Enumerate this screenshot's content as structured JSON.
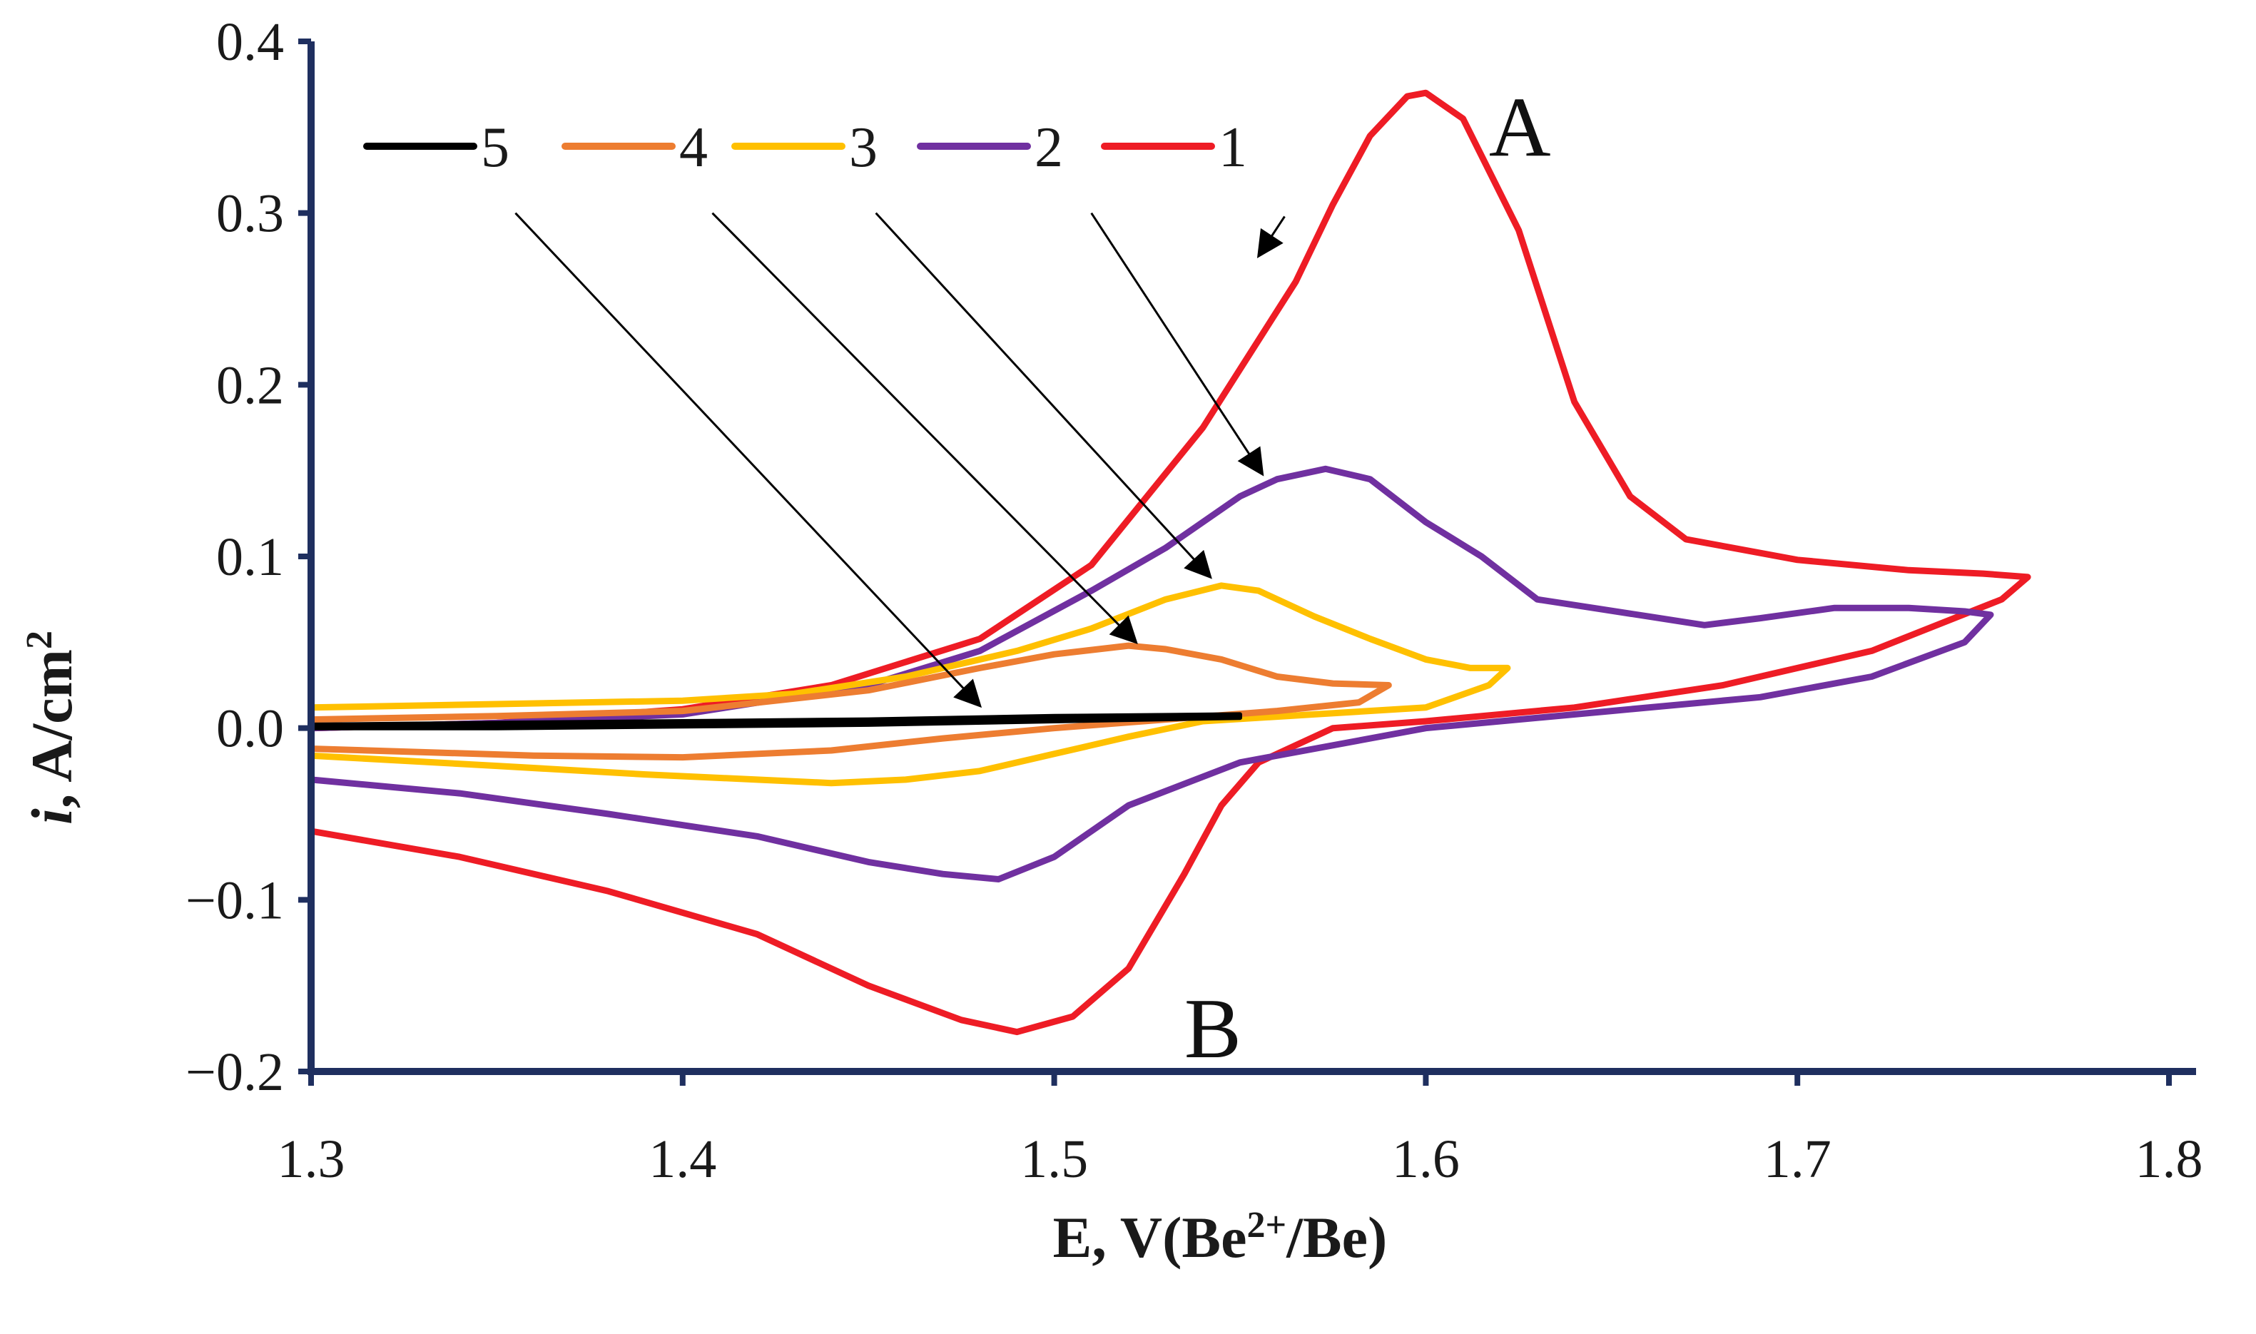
{
  "chart_data": {
    "type": "line",
    "title": "",
    "xlabel": "E, V(Be2+/Be)",
    "xlabel_parts": {
      "main": "E, V(Be",
      "superscript": "2+",
      "tail": "/Be)"
    },
    "ylabel": "i, A/cm2",
    "ylabel_parts": {
      "italic": "i",
      "main": ", A/cm",
      "superscript": "2"
    },
    "xlim": [
      1.3,
      1.8
    ],
    "ylim": [
      -0.2,
      0.4
    ],
    "x_ticks": [
      1.3,
      1.4,
      1.5,
      1.6,
      1.7,
      1.8
    ],
    "x_tick_labels": [
      "1.3",
      "1.4",
      "1.5",
      "1.6",
      "1.7",
      "1.8"
    ],
    "y_ticks": [
      0.4,
      0.3,
      0.2,
      0.1,
      0.0,
      -0.1,
      -0.2
    ],
    "y_tick_labels": [
      "0.4",
      "0.3",
      "0.2",
      "0.1",
      "0.0",
      "−0.1",
      "−0.2"
    ],
    "legend_position": "top-left",
    "legend_order": [
      "5",
      "4",
      "3",
      "2",
      "1"
    ],
    "annotations": [
      {
        "text": "A",
        "x": 1.617,
        "y": 0.35
      },
      {
        "text": "B",
        "x": 1.535,
        "y": -0.175
      }
    ],
    "series": [
      {
        "name": "1",
        "color": "#ee1c25",
        "points": [
          [
            1.3,
            0.0
          ],
          [
            1.35,
            0.003
          ],
          [
            1.4,
            0.011
          ],
          [
            1.44,
            0.025
          ],
          [
            1.48,
            0.052
          ],
          [
            1.51,
            0.095
          ],
          [
            1.54,
            0.175
          ],
          [
            1.565,
            0.26
          ],
          [
            1.575,
            0.305
          ],
          [
            1.585,
            0.345
          ],
          [
            1.595,
            0.368
          ],
          [
            1.6,
            0.37
          ],
          [
            1.61,
            0.355
          ],
          [
            1.625,
            0.29
          ],
          [
            1.64,
            0.19
          ],
          [
            1.655,
            0.135
          ],
          [
            1.67,
            0.11
          ],
          [
            1.7,
            0.098
          ],
          [
            1.73,
            0.092
          ],
          [
            1.75,
            0.09
          ],
          [
            1.762,
            0.088
          ],
          [
            1.755,
            0.075
          ],
          [
            1.72,
            0.045
          ],
          [
            1.68,
            0.025
          ],
          [
            1.64,
            0.012
          ],
          [
            1.6,
            0.004
          ],
          [
            1.575,
            0.0
          ],
          [
            1.555,
            -0.02
          ],
          [
            1.545,
            -0.045
          ],
          [
            1.535,
            -0.085
          ],
          [
            1.52,
            -0.14
          ],
          [
            1.505,
            -0.168
          ],
          [
            1.49,
            -0.177
          ],
          [
            1.475,
            -0.17
          ],
          [
            1.45,
            -0.15
          ],
          [
            1.42,
            -0.12
          ],
          [
            1.38,
            -0.095
          ],
          [
            1.34,
            -0.075
          ],
          [
            1.3,
            -0.06
          ]
        ]
      },
      {
        "name": "2",
        "color": "#7030a0",
        "points": [
          [
            1.3,
            0.0
          ],
          [
            1.35,
            0.003
          ],
          [
            1.4,
            0.008
          ],
          [
            1.45,
            0.025
          ],
          [
            1.48,
            0.045
          ],
          [
            1.51,
            0.08
          ],
          [
            1.53,
            0.105
          ],
          [
            1.55,
            0.135
          ],
          [
            1.56,
            0.145
          ],
          [
            1.573,
            0.151
          ],
          [
            1.585,
            0.145
          ],
          [
            1.6,
            0.12
          ],
          [
            1.615,
            0.1
          ],
          [
            1.63,
            0.075
          ],
          [
            1.645,
            0.07
          ],
          [
            1.66,
            0.065
          ],
          [
            1.675,
            0.06
          ],
          [
            1.69,
            0.064
          ],
          [
            1.71,
            0.07
          ],
          [
            1.73,
            0.07
          ],
          [
            1.745,
            0.068
          ],
          [
            1.752,
            0.066
          ],
          [
            1.745,
            0.05
          ],
          [
            1.72,
            0.03
          ],
          [
            1.69,
            0.018
          ],
          [
            1.65,
            0.01
          ],
          [
            1.6,
            0.0
          ],
          [
            1.55,
            -0.02
          ],
          [
            1.52,
            -0.045
          ],
          [
            1.5,
            -0.075
          ],
          [
            1.485,
            -0.088
          ],
          [
            1.47,
            -0.085
          ],
          [
            1.45,
            -0.078
          ],
          [
            1.42,
            -0.063
          ],
          [
            1.38,
            -0.05
          ],
          [
            1.34,
            -0.038
          ],
          [
            1.3,
            -0.03
          ]
        ]
      },
      {
        "name": "3",
        "color": "#ffc000",
        "points": [
          [
            1.3,
            0.012
          ],
          [
            1.35,
            0.014
          ],
          [
            1.4,
            0.016
          ],
          [
            1.43,
            0.02
          ],
          [
            1.46,
            0.03
          ],
          [
            1.49,
            0.045
          ],
          [
            1.51,
            0.058
          ],
          [
            1.53,
            0.075
          ],
          [
            1.545,
            0.083
          ],
          [
            1.555,
            0.08
          ],
          [
            1.57,
            0.065
          ],
          [
            1.585,
            0.052
          ],
          [
            1.6,
            0.04
          ],
          [
            1.612,
            0.035
          ],
          [
            1.622,
            0.035
          ],
          [
            1.617,
            0.025
          ],
          [
            1.6,
            0.012
          ],
          [
            1.57,
            0.008
          ],
          [
            1.54,
            0.004
          ],
          [
            1.52,
            -0.005
          ],
          [
            1.5,
            -0.015
          ],
          [
            1.48,
            -0.025
          ],
          [
            1.46,
            -0.03
          ],
          [
            1.44,
            -0.032
          ],
          [
            1.42,
            -0.03
          ],
          [
            1.39,
            -0.027
          ],
          [
            1.35,
            -0.022
          ],
          [
            1.3,
            -0.016
          ]
        ]
      },
      {
        "name": "4",
        "color": "#ed7d31",
        "points": [
          [
            1.3,
            0.005
          ],
          [
            1.35,
            0.007
          ],
          [
            1.4,
            0.01
          ],
          [
            1.45,
            0.022
          ],
          [
            1.48,
            0.035
          ],
          [
            1.5,
            0.043
          ],
          [
            1.52,
            0.048
          ],
          [
            1.53,
            0.046
          ],
          [
            1.545,
            0.04
          ],
          [
            1.56,
            0.03
          ],
          [
            1.575,
            0.026
          ],
          [
            1.59,
            0.025
          ],
          [
            1.582,
            0.015
          ],
          [
            1.56,
            0.01
          ],
          [
            1.53,
            0.005
          ],
          [
            1.5,
            0.0
          ],
          [
            1.47,
            -0.006
          ],
          [
            1.44,
            -0.013
          ],
          [
            1.4,
            -0.017
          ],
          [
            1.36,
            -0.016
          ],
          [
            1.3,
            -0.012
          ]
        ]
      },
      {
        "name": "5",
        "color": "#000000",
        "points": [
          [
            1.3,
            0.002
          ],
          [
            1.35,
            0.003
          ],
          [
            1.4,
            0.004
          ],
          [
            1.45,
            0.005
          ],
          [
            1.5,
            0.007
          ],
          [
            1.55,
            0.008
          ],
          [
            1.55,
            0.006
          ],
          [
            1.5,
            0.004
          ],
          [
            1.45,
            0.002
          ],
          [
            1.4,
            0.001
          ],
          [
            1.35,
            0.0
          ],
          [
            1.3,
            0.0
          ]
        ]
      }
    ],
    "arrows": [
      {
        "series": "1",
        "from": [
          1.562,
          0.298
        ],
        "to": [
          1.555,
          0.275
        ]
      },
      {
        "series": "2",
        "from": [
          1.51,
          0.3
        ],
        "to": [
          1.556,
          0.148
        ]
      },
      {
        "series": "3",
        "from": [
          1.452,
          0.3
        ],
        "to": [
          1.542,
          0.088
        ]
      },
      {
        "series": "4",
        "from": [
          1.408,
          0.3
        ],
        "to": [
          1.522,
          0.05
        ]
      },
      {
        "series": "5",
        "from": [
          1.355,
          0.3
        ],
        "to": [
          1.48,
          0.013
        ]
      }
    ]
  }
}
